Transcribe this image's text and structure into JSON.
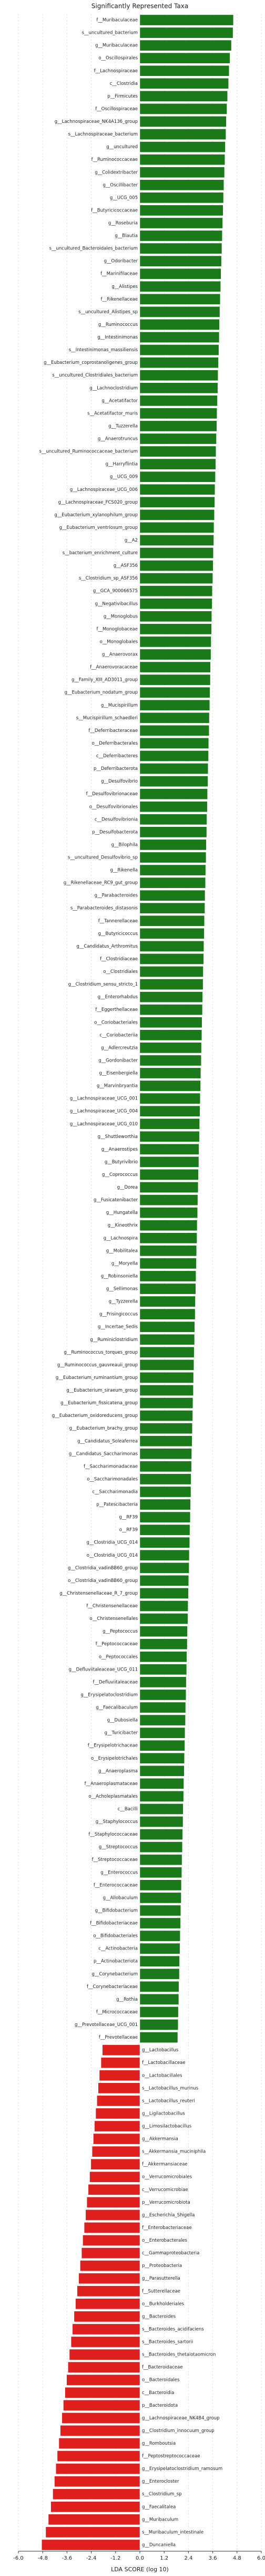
{
  "chart_data": {
    "type": "hbar",
    "title": "Significantly Represented Taxa",
    "xlabel": "LDA SCORE (log 10)",
    "positive_color": "#1a7a1a",
    "negative_color": "#e0201e",
    "grid": true,
    "xlim": [
      -6,
      6
    ],
    "xticks": [
      {
        "value": -6,
        "label": "-6.0"
      },
      -4.8,
      -3.6,
      -2.4,
      -1.2,
      {
        "value": 0,
        "label": "0.0"
      },
      1.2,
      2.4,
      3.6,
      4.8,
      {
        "value": 6,
        "label": "6.0"
      }
    ],
    "categories": [
      "f__Muribaculaceae",
      "s__uncultured_bacterium",
      "g__Muribaculaceae",
      "o__Oscillospirales",
      "f__Lachnospiraceae",
      "c__Clostridia",
      "p__Firmicutes",
      "f__Oscillospiraceae",
      "g__Lachnospiraceae_NK4A136_group",
      "s__Lachnospiraceae_bacterium",
      "g__uncultured",
      "f__Ruminococcaceae",
      "g__Colidextribacter",
      "g__Oscillibacter",
      "g__UCG_005",
      "f__Butyricicoccaceae",
      "g__Roseburia",
      "g__Blautia",
      "s__uncultured_Bacteroidales_bacterium",
      "g__Odoribacter",
      "f__Marinifilaceae",
      "g__Alistipes",
      "f__Rikenellaceae",
      "s__uncultured_Alistipes_sp",
      "g__Ruminococcus",
      "g__Intestinimonas",
      "s__Intestinimonas_massiliensis",
      "g__Eubacterium_coprostanoligenes_group",
      "s__uncultured_Clostridiales_bacterium",
      "g__Lachnoclostridium",
      "g__Acetatifactor",
      "s__Acetatifactor_muris",
      "g__Tuzzerella",
      "g__Anaerotruncus",
      "s__uncultured_Ruminococcaceae_bacterium",
      "g__Harryflintia",
      "g__UCG_009",
      "g__Lachnospiraceae_UCG_006",
      "g__Lachnospiraceae_FCS020_group",
      "g__Eubacterium_xylanophilum_group",
      "g__Eubacterium_ventriosum_group",
      "g__A2",
      "s__bacterium_enrichment_culture",
      "g__ASF356",
      "s__Clostridium_sp_ASF356",
      "g__GCA_900066575",
      "g__Negativibacillus",
      "g__Monoglobus",
      "f__Monoglobaceae",
      "o__Monoglobales",
      "g__Anaerovorax",
      "f__Anaerovoracaceae",
      "g__Family_XIII_AD3011_group",
      "g__Eubacterium_nodatum_group",
      "g__Mucispirillum",
      "s__Mucispirillum_schaedleri",
      "f__Deferribacteraceae",
      "o__Deferribacterales",
      "c__Deferribacteres",
      "p__Deferribacterota",
      "g__Desulfovibrio",
      "f__Desulfovibrionaceae",
      "o__Desulfovibrionales",
      "c__Desulfovibrionia",
      "p__Desulfobacterota",
      "g__Bilophila",
      "s__uncultured_Desulfovibrio_sp",
      "g__Rikenella",
      "g__Rikenellaceae_RC9_gut_group",
      "g__Parabacteroides",
      "s__Parabacteroides_distasonis",
      "f__Tannerellaceae",
      "g__Butyricicoccus",
      "g__Candidatus_Arthromitus",
      "f__Clostridiaceae",
      "o__Clostridiales",
      "g__Clostridium_sensu_stricto_1",
      "g__Enterorhabdus",
      "f__Eggerthellaceae",
      "o__Coriobacteriales",
      "c__Coriobacteriia",
      "g__Adlercreutzia",
      "g__Gordonibacter",
      "g__Eisenbergiella",
      "g__Marvinbryantia",
      "g__Lachnospiraceae_UCG_001",
      "g__Lachnospiraceae_UCG_004",
      "g__Lachnospiraceae_UCG_010",
      "g__Shuttleworthia",
      "g__Anaerostipes",
      "g__Butyrivibrio",
      "g__Coprococcus",
      "g__Dorea",
      "g__Fusicatenibacter",
      "g__Hungatella",
      "g__Kineothrix",
      "g__Lachnospira",
      "g__Mobilitalea",
      "g__Moryella",
      "g__Robinsoniella",
      "g__Sellimonas",
      "g__Tyzzerella",
      "g__Frisingicoccus",
      "g__Incertae_Sedis",
      "g__Ruminiclostridium",
      "g__Ruminococcus_torques_group",
      "g__Ruminococcus_gauvreauii_group",
      "g__Eubacterium_ruminantium_group",
      "g__Eubacterium_siraeum_group",
      "g__Eubacterium_fissicatena_group",
      "g__Eubacterium_oxidoreducens_group",
      "g__Eubacterium_brachy_group",
      "g__Candidatus_Soleaferrea",
      "g__Candidatus_Saccharimonas",
      "f__Saccharimonadaceae",
      "o__Saccharimonadales",
      "c__Saccharimonadia",
      "p__Patescibacteria",
      "g__RF39",
      "o__RF39",
      "g__Clostridia_UCG_014",
      "o__Clostridia_UCG_014",
      "g__Clostridia_vadinBB60_group",
      "o__Clostridia_vadinBB60_group",
      "g__Christensenellaceae_R_7_group",
      "f__Christensenellaceae",
      "o__Christensenellales",
      "g__Peptococcus",
      "f__Peptococcaceae",
      "o__Peptococcales",
      "g__Defluviitaleaceae_UCG_011",
      "f__Defluviitaleaceae",
      "g__Erysipelatoclostridium",
      "g__Faecalibaculum",
      "g__Dubosiella",
      "g__Turicibacter",
      "f__Erysipelotrichaceae",
      "o__Erysipelotrichales",
      "g__Anaeroplasma",
      "f__Anaeroplasmataceae",
      "o__Acholeplasmatales",
      "c__Bacilli",
      "g__Staphylococcus",
      "f__Staphylococcaceae",
      "g__Streptococcus",
      "f__Streptococcaceae",
      "g__Enterococcus",
      "f__Enterococcaceae",
      "g__Allobaculum",
      "g__Bifidobacterium",
      "f__Bifidobacteriaceae",
      "o__Bifidobacteriales",
      "c__Actinobacteria",
      "p__Actinobacteriota",
      "g__Corynebacterium",
      "f__Corynebacteriaceae",
      "g__Rothia",
      "f__Micrococcaceae",
      "g__Prevotellaceae_UCG_001",
      "f__Prevotellaceae",
      "g__Lactobacillus",
      "f__Lactobacillaceae",
      "o__Lactobacillales",
      "s__Lactobacillus_murinus",
      "s__Lactobacillus_reuteri",
      "g__Ligilactobacillus",
      "g__Limosilactobacillus",
      "g__Akkermansia",
      "s__Akkermansia_muciniphila",
      "f__Akkermansiaceae",
      "o__Verrucomicrobiales",
      "c__Verrucomicrobiae",
      "p__Verrucomicrobiota",
      "g__Escherichia_Shigella",
      "f__Enterobacteriaceae",
      "o__Enterobacterales",
      "c__Gammaproteobacteria",
      "p__Proteobacteria",
      "g__Parasutterella",
      "f__Sutterellaceae",
      "o__Burkholderiales",
      "g__Bacteroides",
      "s__Bacteroides_acidifaciens",
      "s__Bacteroides_sartorii",
      "s__Bacteroides_thetaiotaomicron",
      "f__Bacteroidaceae",
      "o__Bacteroidales",
      "c__Bacteroidia",
      "p__Bacteroidota",
      "g__Lachnospiraceae_NK4B4_group",
      "g__Clostridium_innocuum_group",
      "g__Romboutsia",
      "f__Peptostreptococcaceae",
      "g__Erysipelatoclostridium_ramosum",
      "g__Enterocloster",
      "s__Clostridium_sp",
      "g__Faecalitalea",
      "g__Muribaculum",
      "s__Muribaculum_intestinale",
      "g__Duncaniella"
    ],
    "values": [
      4.62,
      4.6,
      4.52,
      4.45,
      4.41,
      4.38,
      4.33,
      4.3,
      4.27,
      4.25,
      4.22,
      4.2,
      4.18,
      4.15,
      4.13,
      4.11,
      4.09,
      4.07,
      4.05,
      4.03,
      4.01,
      3.99,
      3.97,
      3.95,
      3.93,
      3.92,
      3.9,
      3.88,
      3.86,
      3.85,
      3.83,
      3.81,
      3.8,
      3.78,
      3.76,
      3.75,
      3.73,
      3.71,
      3.7,
      3.68,
      3.66,
      3.65,
      3.63,
      3.62,
      3.6,
      3.58,
      3.57,
      3.55,
      3.54,
      3.52,
      3.51,
      3.49,
      3.48,
      3.46,
      3.45,
      3.43,
      3.42,
      3.4,
      3.39,
      3.37,
      3.36,
      3.34,
      3.33,
      3.31,
      3.3,
      3.28,
      3.27,
      3.25,
      3.24,
      3.22,
      3.21,
      3.19,
      3.18,
      3.16,
      3.15,
      3.13,
      3.12,
      3.1,
      3.09,
      3.07,
      3.06,
      3.04,
      3.03,
      3.01,
      3.0,
      2.98,
      2.97,
      2.95,
      2.94,
      2.92,
      2.91,
      2.89,
      2.88,
      2.86,
      2.85,
      2.83,
      2.82,
      2.8,
      2.79,
      2.77,
      2.76,
      2.74,
      2.73,
      2.71,
      2.7,
      2.68,
      2.67,
      2.65,
      2.64,
      2.62,
      2.61,
      2.59,
      2.58,
      2.56,
      2.55,
      2.53,
      2.52,
      2.5,
      2.49,
      2.47,
      2.46,
      2.44,
      2.43,
      2.41,
      2.4,
      2.38,
      2.37,
      2.35,
      2.34,
      2.32,
      2.31,
      2.29,
      2.28,
      2.26,
      2.25,
      2.23,
      2.22,
      2.2,
      2.19,
      2.17,
      2.16,
      2.14,
      2.13,
      2.11,
      2.1,
      2.08,
      2.07,
      2.05,
      2.04,
      2.02,
      2.01,
      1.99,
      1.98,
      1.96,
      1.95,
      1.93,
      1.92,
      1.9,
      1.89,
      1.87,
      -1.85,
      -1.92,
      -2.0,
      -2.06,
      -2.12,
      -2.18,
      -2.24,
      -2.3,
      -2.36,
      -2.42,
      -2.48,
      -2.55,
      -2.62,
      -2.68,
      -2.75,
      -2.82,
      -2.88,
      -2.95,
      -3.02,
      -3.1,
      -3.18,
      -3.25,
      -3.33,
      -3.4,
      -3.48,
      -3.55,
      -3.62,
      -3.7,
      -3.78,
      -3.85,
      -3.93,
      -4.0,
      -4.08,
      -4.15,
      -4.22,
      -4.3,
      -4.4,
      -4.52,
      -4.65,
      -4.85
    ]
  }
}
